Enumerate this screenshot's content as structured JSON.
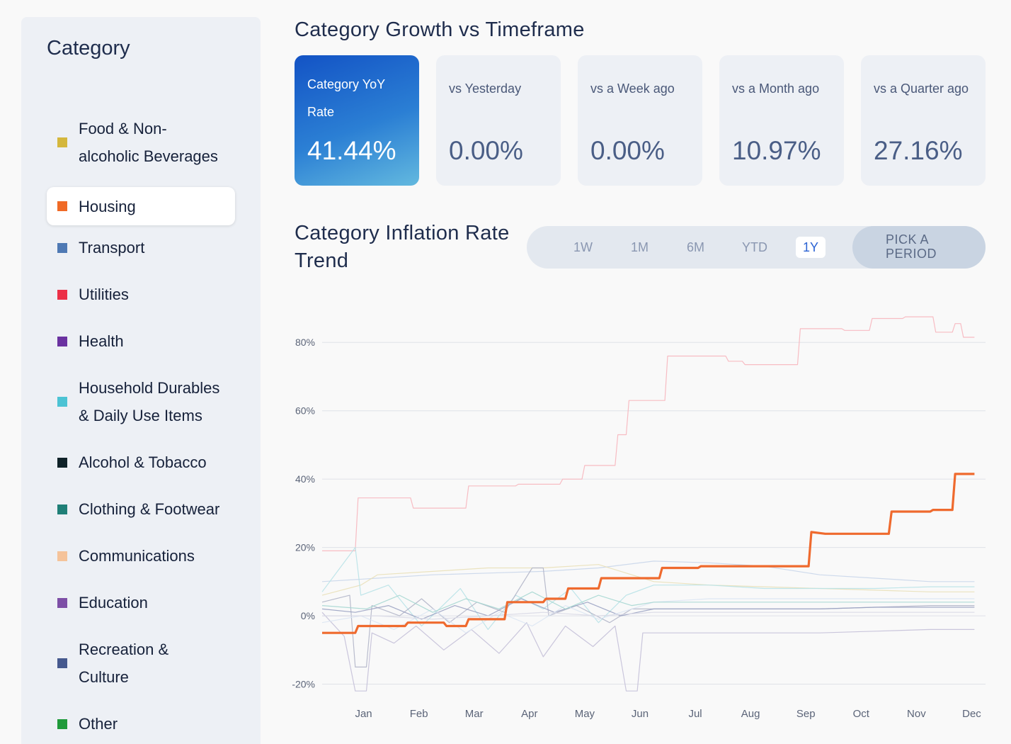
{
  "sidebar": {
    "title": "Category",
    "items": [
      {
        "line1": "Food & Non-",
        "line2": "alcoholic Beverages",
        "color": "#d4b73d",
        "active": false
      },
      {
        "line1": "Housing",
        "line2": "",
        "color": "#f06a26",
        "active": true
      },
      {
        "line1": "Transport",
        "line2": "",
        "color": "#4f79b4",
        "active": false
      },
      {
        "line1": "Utilities",
        "line2": "",
        "color": "#ec3047",
        "active": false
      },
      {
        "line1": "Health",
        "line2": "",
        "color": "#6a32a0",
        "active": false
      },
      {
        "line1": "Household Durables",
        "line2": "& Daily Use Items",
        "color": "#4cc3d4",
        "active": false
      },
      {
        "line1": "Alcohol & Tobacco",
        "line2": "",
        "color": "#0f2228",
        "active": false
      },
      {
        "line1": "Clothing & Footwear",
        "line2": "",
        "color": "#1f7f77",
        "active": false
      },
      {
        "line1": "Communications",
        "line2": "",
        "color": "#f5c39a",
        "active": false
      },
      {
        "line1": "Education",
        "line2": "",
        "color": "#7d4fa6",
        "active": false
      },
      {
        "line1": "Recreation &",
        "line2": "Culture",
        "color": "#46598e",
        "active": false
      },
      {
        "line1": "Other",
        "line2": "",
        "color": "#1f9a3a",
        "active": false
      }
    ]
  },
  "header": {
    "title": "Category Growth vs Timeframe",
    "cards": [
      {
        "label": "Category YoY Rate",
        "value": "41.44%"
      },
      {
        "label": "vs Yesterday",
        "value": "0.00%"
      },
      {
        "label": "vs a Week ago",
        "value": "0.00%"
      },
      {
        "label": "vs a Month ago",
        "value": "10.97%"
      },
      {
        "label": "vs a Quarter ago",
        "value": "27.16%"
      }
    ]
  },
  "trend": {
    "title": "Category Inflation Rate Trend",
    "periods": [
      "1W",
      "1M",
      "6M",
      "YTD",
      "1Y"
    ],
    "active_period": "1Y",
    "pick_line1": "PICK A",
    "pick_line2": "PERIOD"
  },
  "chart_data": {
    "type": "line",
    "x_ticks": [
      "Jan",
      "Feb",
      "Mar",
      "Apr",
      "May",
      "Jun",
      "Jul",
      "Aug",
      "Sep",
      "Oct",
      "Nov",
      "Dec"
    ],
    "y_ticks": [
      "-20%",
      "0%",
      "20%",
      "40%",
      "60%",
      "80%"
    ],
    "ylim": [
      -23,
      90
    ],
    "xlim": [
      0,
      12
    ],
    "grid": true,
    "highlight_color": "#ef6a2e",
    "series": [
      {
        "highlight": true,
        "color": "#ef6a2e",
        "step": true,
        "points": [
          [
            0,
            -5
          ],
          [
            0.6,
            -5
          ],
          [
            0.65,
            -3
          ],
          [
            1.5,
            -3
          ],
          [
            1.55,
            -2
          ],
          [
            2.2,
            -2
          ],
          [
            2.25,
            -3
          ],
          [
            2.6,
            -3
          ],
          [
            2.65,
            -1
          ],
          [
            3.3,
            -1
          ],
          [
            3.35,
            4
          ],
          [
            4.0,
            4
          ],
          [
            4.05,
            5
          ],
          [
            4.4,
            5
          ],
          [
            4.45,
            8
          ],
          [
            5.0,
            8
          ],
          [
            5.05,
            11
          ],
          [
            5.6,
            11
          ],
          [
            5.65,
            11
          ],
          [
            6.1,
            11
          ],
          [
            6.15,
            14
          ],
          [
            6.8,
            14
          ],
          [
            6.85,
            14.5
          ],
          [
            8.8,
            14.5
          ],
          [
            8.85,
            24.5
          ],
          [
            9.1,
            24
          ],
          [
            10.25,
            24
          ],
          [
            10.3,
            30.5
          ],
          [
            11.0,
            30.5
          ],
          [
            11.05,
            31
          ],
          [
            11.4,
            31
          ],
          [
            11.45,
            41.5
          ],
          [
            11.8,
            41.5
          ]
        ]
      },
      {
        "color": "#f7b5bd",
        "step": true,
        "points": [
          [
            0,
            19
          ],
          [
            0.6,
            19
          ],
          [
            0.65,
            34.5
          ],
          [
            1.6,
            34.5
          ],
          [
            1.65,
            31.5
          ],
          [
            2.6,
            31.5
          ],
          [
            2.65,
            38
          ],
          [
            3.5,
            38
          ],
          [
            3.55,
            38.5
          ],
          [
            4.3,
            38.5
          ],
          [
            4.35,
            40
          ],
          [
            4.7,
            40
          ],
          [
            4.75,
            44
          ],
          [
            5.3,
            44
          ],
          [
            5.35,
            53
          ],
          [
            5.5,
            53
          ],
          [
            5.55,
            63
          ],
          [
            6.2,
            63
          ],
          [
            6.25,
            76
          ],
          [
            7.3,
            76
          ],
          [
            7.35,
            74.5
          ],
          [
            7.6,
            74.5
          ],
          [
            7.65,
            73.5
          ],
          [
            8.6,
            73.5
          ],
          [
            8.65,
            84
          ],
          [
            9.4,
            84
          ],
          [
            9.45,
            83.5
          ],
          [
            9.9,
            83.5
          ],
          [
            9.95,
            87
          ],
          [
            10.5,
            87
          ],
          [
            10.55,
            87.5
          ],
          [
            11.05,
            87.5
          ],
          [
            11.1,
            83
          ],
          [
            11.4,
            83
          ],
          [
            11.45,
            85.5
          ],
          [
            11.55,
            85.5
          ],
          [
            11.6,
            81.5
          ],
          [
            11.8,
            81.5
          ]
        ]
      },
      {
        "color": "#c9d6ea",
        "points": [
          [
            0,
            10
          ],
          [
            1,
            11
          ],
          [
            2,
            12
          ],
          [
            3,
            12.5
          ],
          [
            4,
            13
          ],
          [
            5,
            14
          ],
          [
            6,
            16
          ],
          [
            7,
            15.5
          ],
          [
            8,
            14.5
          ],
          [
            9,
            12
          ],
          [
            10,
            11
          ],
          [
            11,
            10
          ],
          [
            11.8,
            10
          ]
        ]
      },
      {
        "color": "#e9e0b8",
        "points": [
          [
            0,
            6
          ],
          [
            0.7,
            9
          ],
          [
            1,
            12
          ],
          [
            2,
            13
          ],
          [
            3,
            14
          ],
          [
            4,
            14
          ],
          [
            5,
            15
          ],
          [
            6,
            10
          ],
          [
            7,
            9
          ],
          [
            8,
            8.5
          ],
          [
            9,
            8
          ],
          [
            10,
            7.5
          ],
          [
            11,
            7
          ],
          [
            11.8,
            7
          ]
        ]
      },
      {
        "color": "#b8e2e7",
        "points": [
          [
            0,
            7
          ],
          [
            0.6,
            20
          ],
          [
            0.7,
            6
          ],
          [
            1.2,
            9
          ],
          [
            1.8,
            -3
          ],
          [
            2.5,
            8
          ],
          [
            3,
            -4
          ],
          [
            3.5,
            6
          ],
          [
            4,
            2
          ],
          [
            4.5,
            8
          ],
          [
            5,
            -2
          ],
          [
            5.5,
            6
          ],
          [
            6,
            9
          ],
          [
            7,
            9
          ],
          [
            8,
            8
          ],
          [
            9,
            8
          ],
          [
            10,
            8
          ],
          [
            11,
            8.5
          ],
          [
            11.8,
            8.5
          ]
        ]
      },
      {
        "color": "#b1b5c8",
        "points": [
          [
            0,
            4
          ],
          [
            0.5,
            6
          ],
          [
            0.6,
            -15
          ],
          [
            0.8,
            -15
          ],
          [
            0.9,
            3
          ],
          [
            1.4,
            0
          ],
          [
            1.8,
            5
          ],
          [
            2.3,
            -2
          ],
          [
            2.8,
            4
          ],
          [
            3.3,
            1
          ],
          [
            3.8,
            14
          ],
          [
            4.0,
            14
          ],
          [
            4.1,
            0
          ],
          [
            4.6,
            3
          ],
          [
            5.2,
            -2
          ],
          [
            5.6,
            2
          ],
          [
            6,
            2
          ],
          [
            7,
            2
          ],
          [
            8,
            2
          ],
          [
            9,
            2
          ],
          [
            10,
            2.5
          ],
          [
            11,
            3
          ],
          [
            11.8,
            3
          ]
        ]
      },
      {
        "color": "#c4c0d8",
        "points": [
          [
            0,
            1
          ],
          [
            0.4,
            -6
          ],
          [
            0.6,
            -22
          ],
          [
            0.8,
            -22
          ],
          [
            0.9,
            -5
          ],
          [
            1.3,
            -8
          ],
          [
            1.7,
            -3
          ],
          [
            2.2,
            -10
          ],
          [
            2.7,
            -4
          ],
          [
            3.2,
            -11
          ],
          [
            3.7,
            -2
          ],
          [
            4.0,
            -12
          ],
          [
            4.4,
            -3
          ],
          [
            4.9,
            -9
          ],
          [
            5.3,
            -3
          ],
          [
            5.5,
            -22
          ],
          [
            5.7,
            -22
          ],
          [
            5.8,
            -5
          ],
          [
            6,
            -5
          ],
          [
            7,
            -5
          ],
          [
            8,
            -5
          ],
          [
            9,
            -5
          ],
          [
            10,
            -4.5
          ],
          [
            11,
            -4
          ],
          [
            11.8,
            -4
          ]
        ]
      },
      {
        "color": "#9aa2c2",
        "points": [
          [
            0,
            2
          ],
          [
            0.6,
            1
          ],
          [
            1.2,
            3
          ],
          [
            1.8,
            -1
          ],
          [
            2.4,
            3
          ],
          [
            3,
            0
          ],
          [
            3.6,
            5
          ],
          [
            4.2,
            1
          ],
          [
            4.8,
            4
          ],
          [
            5.4,
            0
          ],
          [
            6,
            2
          ],
          [
            7,
            2
          ],
          [
            8,
            2
          ],
          [
            9,
            2
          ],
          [
            10,
            2.5
          ],
          [
            11,
            2.5
          ],
          [
            11.8,
            2.5
          ]
        ]
      },
      {
        "color": "#dbe6f3",
        "points": [
          [
            0,
            -2
          ],
          [
            0.7,
            0
          ],
          [
            1.3,
            -4
          ],
          [
            2,
            2
          ],
          [
            2.6,
            -5
          ],
          [
            3.2,
            1
          ],
          [
            3.8,
            -3
          ],
          [
            4.4,
            3
          ],
          [
            5,
            -1
          ],
          [
            5.6,
            2
          ],
          [
            6,
            4
          ],
          [
            7,
            5
          ],
          [
            8,
            5
          ],
          [
            9,
            5
          ],
          [
            10,
            5
          ],
          [
            11,
            5
          ],
          [
            11.8,
            5
          ]
        ]
      },
      {
        "color": "#a6d7d2",
        "points": [
          [
            0,
            3
          ],
          [
            0.8,
            2
          ],
          [
            1.4,
            6
          ],
          [
            2,
            1
          ],
          [
            2.6,
            5
          ],
          [
            3.2,
            2
          ],
          [
            3.8,
            7
          ],
          [
            4.4,
            2
          ],
          [
            5,
            6
          ],
          [
            5.6,
            3
          ],
          [
            6,
            4
          ],
          [
            7,
            4
          ],
          [
            8,
            4
          ],
          [
            9,
            4
          ],
          [
            10,
            4
          ],
          [
            11,
            4
          ],
          [
            11.8,
            4
          ]
        ]
      },
      {
        "color": "#d9d9e6",
        "points": [
          [
            0,
            0
          ],
          [
            1,
            0
          ],
          [
            2,
            -1
          ],
          [
            3,
            0
          ],
          [
            4,
            1
          ],
          [
            5,
            0
          ],
          [
            6,
            1
          ],
          [
            7,
            1
          ],
          [
            8,
            1
          ],
          [
            9,
            1
          ],
          [
            10,
            1
          ],
          [
            11,
            1
          ],
          [
            11.8,
            1
          ]
        ]
      }
    ]
  }
}
